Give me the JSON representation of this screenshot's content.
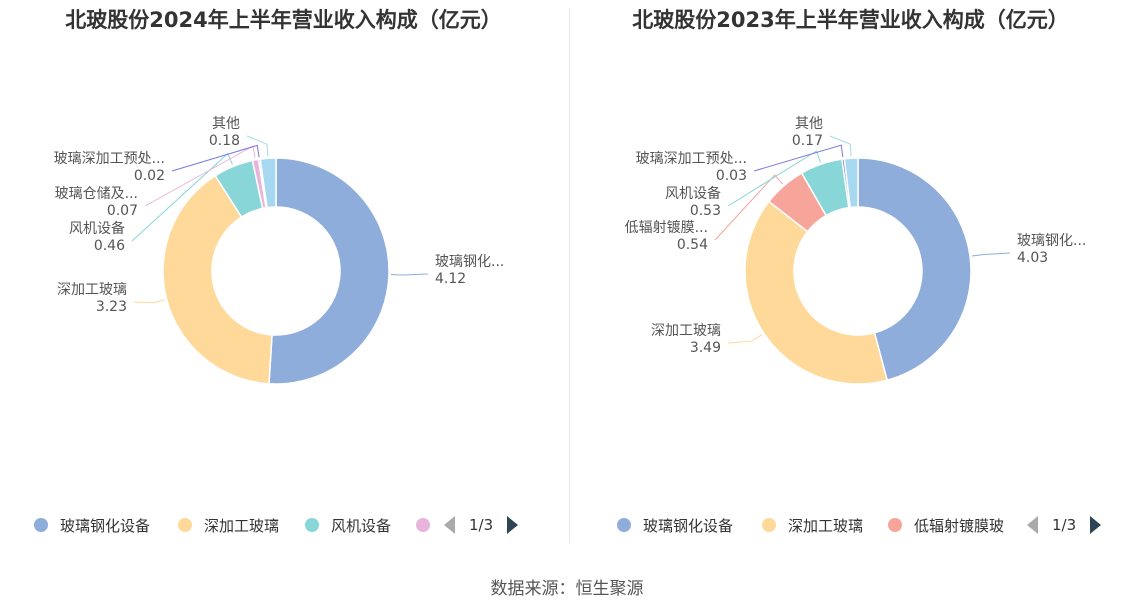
{
  "source": "数据来源：恒生聚源",
  "chart_data": [
    {
      "type": "pie",
      "title": "北玻股份2024年上半年营业收入构成（亿元）",
      "slices": [
        {
          "name": "玻璃钢化设备",
          "short": "玻璃钢化...",
          "value": 4.12,
          "value_label": "4.12",
          "color": "#8fadda"
        },
        {
          "name": "深加工玻璃",
          "short": "深加工玻璃",
          "value": 3.23,
          "value_label": "3.23",
          "color": "#fed99a"
        },
        {
          "name": "风机设备",
          "short": "风机设备",
          "value": 0.46,
          "value_label": "0.46",
          "color": "#89d6d8"
        },
        {
          "name": "玻璃仓储及...",
          "short": "玻璃仓储及...",
          "value": 0.07,
          "value_label": "0.07",
          "color": "#e8b4dc"
        },
        {
          "name": "玻璃深加工预处...",
          "short": "玻璃深加工预处...",
          "value": 0.02,
          "value_label": "0.02",
          "color": "#7b79e0"
        },
        {
          "name": "其他",
          "short": "其他",
          "value": 0.18,
          "value_label": "0.18",
          "color": "#a6d8f2"
        }
      ],
      "legend": {
        "items": [
          {
            "name": "玻璃钢化设备",
            "color": "#8fadda"
          },
          {
            "name": "深加工玻璃",
            "color": "#fed99a"
          },
          {
            "name": "风机设备",
            "color": "#89d6d8"
          },
          {
            "name": "",
            "color": "#e8b4dc"
          }
        ],
        "page": "1/3",
        "placement": "bottom"
      }
    },
    {
      "type": "pie",
      "title": "北玻股份2023年上半年营业收入构成（亿元）",
      "slices": [
        {
          "name": "玻璃钢化设备",
          "short": "玻璃钢化...",
          "value": 4.03,
          "value_label": "4.03",
          "color": "#8fadda"
        },
        {
          "name": "深加工玻璃",
          "short": "深加工玻璃",
          "value": 3.49,
          "value_label": "3.49",
          "color": "#fed99a"
        },
        {
          "name": "低辐射镀膜玻璃",
          "short": "低辐射镀膜...",
          "value": 0.54,
          "value_label": "0.54",
          "color": "#f7a49a"
        },
        {
          "name": "风机设备",
          "short": "风机设备",
          "value": 0.53,
          "value_label": "0.53",
          "color": "#89d6d8"
        },
        {
          "name": "玻璃深加工预处...",
          "short": "玻璃深加工预处...",
          "value": 0.03,
          "value_label": "0.03",
          "color": "#7b79e0"
        },
        {
          "name": "其他",
          "short": "其他",
          "value": 0.17,
          "value_label": "0.17",
          "color": "#a6d8f2"
        }
      ],
      "legend": {
        "items": [
          {
            "name": "玻璃钢化设备",
            "color": "#8fadda"
          },
          {
            "name": "深加工玻璃",
            "color": "#fed99a"
          },
          {
            "name": "低辐射镀膜玻",
            "color": "#f7a49a"
          }
        ],
        "page": "1/3",
        "placement": "bottom"
      }
    }
  ]
}
